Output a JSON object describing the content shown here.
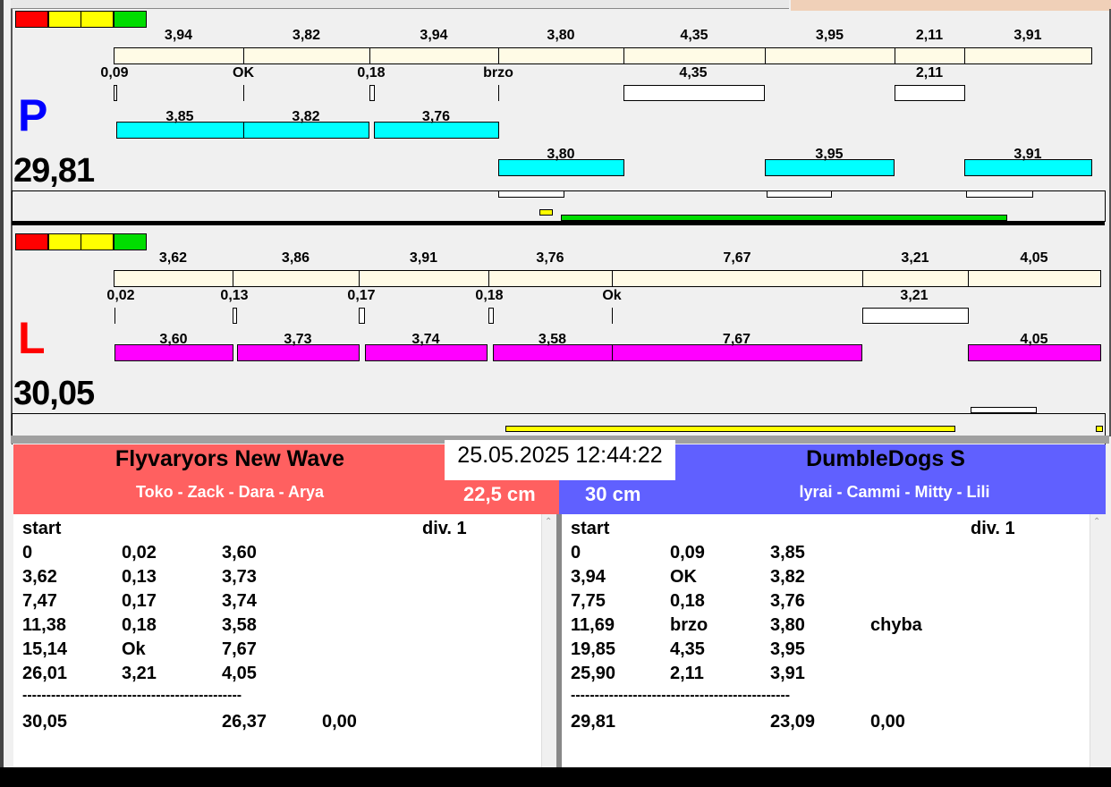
{
  "indicator_colors": [
    "#ff0000",
    "#ffff00",
    "#ffff00",
    "#00dd00"
  ],
  "P": {
    "letter": "P",
    "letter_color": "#0000ff",
    "total": "29,81",
    "top_labels": [
      "3,94",
      "3,82",
      "3,94",
      "3,80",
      "4,35",
      "3,95",
      "2,11",
      "3,91"
    ],
    "mid_labels": [
      "0,09",
      "OK",
      "0,18",
      "brzo",
      "4,35",
      "2,11"
    ],
    "bar_labels_a": [
      "3,85",
      "3,82",
      "3,76"
    ],
    "bar_labels_b": [
      "3,80",
      "3,95",
      "3,91"
    ],
    "bar_color": "#00ffff"
  },
  "L": {
    "letter": "L",
    "letter_color": "#ff0000",
    "total": "30,05",
    "top_labels": [
      "3,62",
      "3,86",
      "3,91",
      "3,76",
      "7,67",
      "3,21",
      "4,05"
    ],
    "mid_labels": [
      "0,02",
      "0,13",
      "0,17",
      "0,18",
      "Ok",
      "3,21"
    ],
    "bar_labels": [
      "3,60",
      "3,73",
      "3,74",
      "3,58",
      "7,67",
      "4,05"
    ],
    "bar_color": "#ff00ff"
  },
  "datetime": "25.05.2025 12:44:22",
  "left_team": {
    "name": "Flyvaryors New Wave",
    "members": "Toko - Zack - Dara - Arya",
    "height": "22,5 cm",
    "color": "#ff6060",
    "header": [
      "start",
      "div.  1"
    ],
    "rows": [
      [
        "0",
        "0,02",
        "3,60",
        ""
      ],
      [
        "3,62",
        "0,13",
        "3,73",
        ""
      ],
      [
        "7,47",
        "0,17",
        "3,74",
        ""
      ],
      [
        "11,38",
        "0,18",
        "3,58",
        ""
      ],
      [
        "15,14",
        "Ok",
        "7,67",
        ""
      ],
      [
        "26,01",
        "3,21",
        "4,05",
        ""
      ]
    ],
    "separator": "----------------------------------------------",
    "totals": [
      "30,05",
      "",
      "26,37",
      "0,00"
    ]
  },
  "right_team": {
    "name": "DumbleDogs S",
    "members": "lyrai - Cammi - Mitty - Lili",
    "height": "30 cm",
    "color": "#6060ff",
    "header": [
      "start",
      "div.  1"
    ],
    "rows": [
      [
        "0",
        "0,09",
        "3,85",
        ""
      ],
      [
        "3,94",
        "OK",
        "3,82",
        ""
      ],
      [
        "7,75",
        "0,18",
        "3,76",
        ""
      ],
      [
        "11,69",
        "brzo",
        "3,80",
        "chyba"
      ],
      [
        "19,85",
        "4,35",
        "3,95",
        ""
      ],
      [
        "25,90",
        "2,11",
        "3,91",
        ""
      ]
    ],
    "separator": "----------------------------------------------",
    "totals": [
      "29,81",
      "",
      "23,09",
      "0,00"
    ]
  }
}
